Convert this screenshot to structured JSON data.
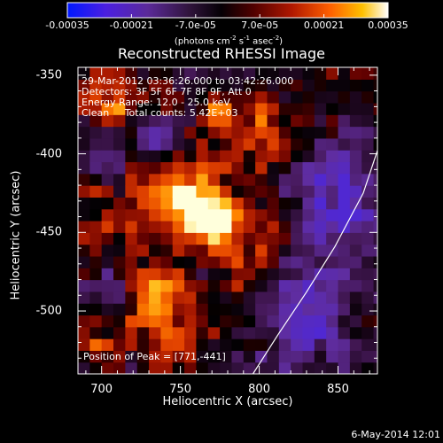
{
  "chart_data": {
    "type": "heatmap",
    "title": "Reconstructed RHESSI Image",
    "xlabel": "Heliocentric X (arcsec)",
    "ylabel": "Heliocentric Y (arcsec)",
    "x_range": [
      685,
      875
    ],
    "y_range": [
      -540,
      -345
    ],
    "x_ticks": [
      "700",
      "750",
      "800",
      "850"
    ],
    "y_ticks": [
      "-350",
      "-400",
      "-450",
      "-500"
    ],
    "colorbar": {
      "min": -0.00035,
      "max": 0.00035,
      "tick_labels": [
        "-0.00035",
        "-0.00021",
        "-7.0e-05",
        "7.0e-05",
        "0.00021",
        "0.00035"
      ],
      "units_text": "(photons cm",
      "units_exp1": "-2",
      "units_mid": " s",
      "units_exp2": "-1",
      "units_end": " asec",
      "units_exp3": "-2",
      "units_close": ")"
    },
    "annotations": {
      "time": "29-Mar-2012 03:36:26.000 to 03:42:26.000",
      "detectors": "Detectors: 3F 5F 6F 7F 8F 9F, Att 0",
      "energy": "Energy Range: 12.0 - 25.0 keV",
      "clean": "Clean     Total counts: 5.42E+03",
      "peak": "Position of Peak = [771,-441]"
    },
    "peak": [
      771,
      -441
    ],
    "limb_curve": [
      [
        796,
        -540
      ],
      [
        812,
        -515
      ],
      [
        830,
        -488
      ],
      [
        848,
        -459
      ],
      [
        866,
        -425
      ],
      [
        875,
        -398
      ]
    ],
    "sources": [
      {
        "x": 771,
        "y": -441,
        "amp": 1.0,
        "sigma": 9
      },
      {
        "x": 762,
        "y": -428,
        "amp": 0.55,
        "sigma": 20
      },
      {
        "x": 740,
        "y": -425,
        "amp": 0.5,
        "sigma": 16
      },
      {
        "x": 775,
        "y": -373,
        "amp": 0.7,
        "sigma": 6
      },
      {
        "x": 800,
        "y": -385,
        "amp": 0.45,
        "sigma": 12
      },
      {
        "x": 710,
        "y": -365,
        "amp": 0.45,
        "sigma": 12
      },
      {
        "x": 740,
        "y": -505,
        "amp": 0.45,
        "sigma": 14
      },
      {
        "x": 735,
        "y": -485,
        "amp": 0.35,
        "sigma": 12
      },
      {
        "x": 790,
        "y": -470,
        "amp": 0.35,
        "sigma": 14
      },
      {
        "x": 810,
        "y": -440,
        "amp": 0.35,
        "sigma": 12
      },
      {
        "x": 700,
        "y": -450,
        "amp": 0.3,
        "sigma": 12
      },
      {
        "x": 820,
        "y": -400,
        "amp": 0.3,
        "sigma": 10
      },
      {
        "x": 700,
        "y": -525,
        "amp": 0.3,
        "sigma": 10
      }
    ],
    "dimmed_regions": [
      {
        "x": 850,
        "y": -430,
        "amp": 0.6,
        "sigma": 28
      },
      {
        "x": 830,
        "y": -505,
        "amp": 0.5,
        "sigma": 26
      },
      {
        "x": 735,
        "y": -395,
        "amp": 0.35,
        "sigma": 14
      },
      {
        "x": 700,
        "y": -400,
        "amp": 0.3,
        "sigma": 12
      },
      {
        "x": 705,
        "y": -482,
        "amp": 0.3,
        "sigma": 12
      }
    ]
  },
  "footer": {
    "date": "6-May-2014 12:01"
  }
}
